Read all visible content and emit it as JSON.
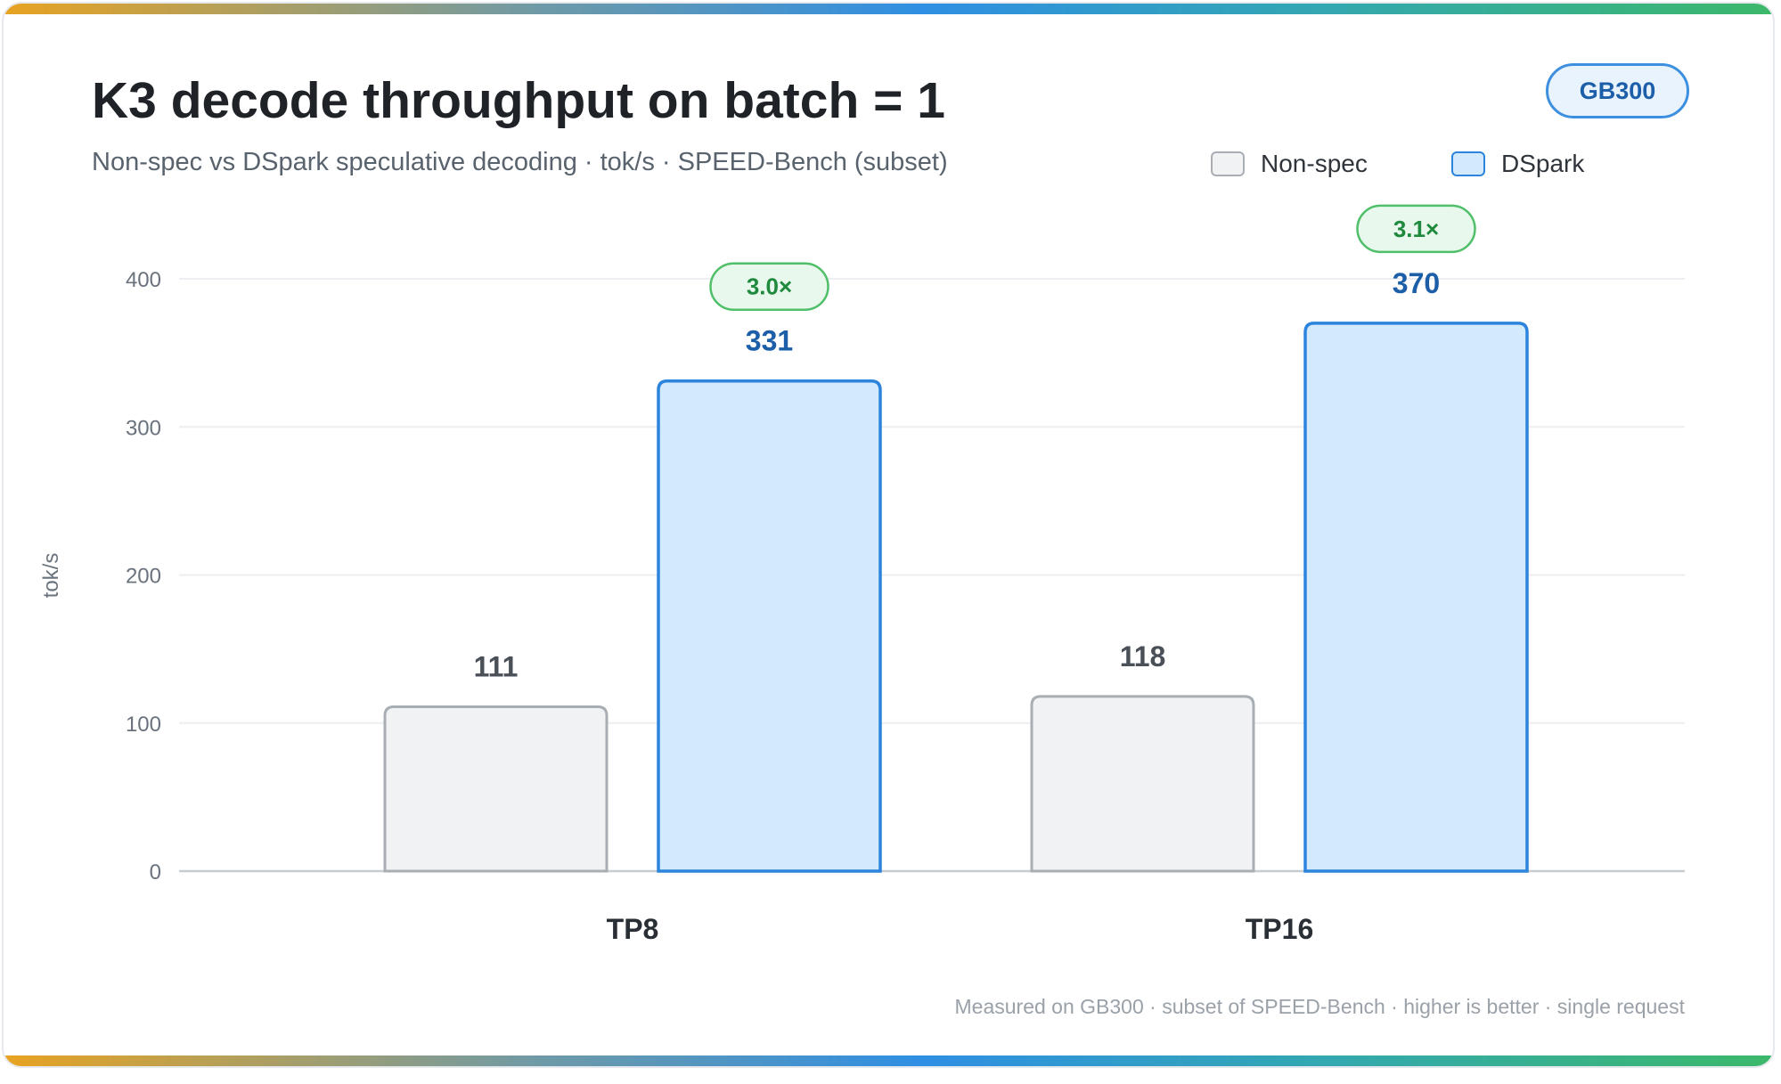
{
  "header": {
    "title": "K3 decode throughput on batch = 1",
    "subtitle": "Non-spec vs DSpark speculative decoding · tok/s · SPEED-Bench (subset)",
    "badge": "GB300"
  },
  "legend": {
    "items": [
      {
        "label": "Non-spec",
        "color": "#f1f2f4",
        "border": "#a9aeb5"
      },
      {
        "label": "DSpark",
        "color": "#d2eafc",
        "border": "#2c84dc"
      }
    ]
  },
  "footer": {
    "note": "Measured on GB300 · subset of SPEED-Bench · higher is better · single request"
  },
  "chart_data": {
    "type": "bar",
    "title": "K3 decode throughput on batch = 1",
    "subtitle": "Non-spec vs DSpark speculative decoding · tok/s · SPEED-Bench (subset)",
    "xlabel": "",
    "ylabel": "tok/s",
    "categories": [
      "TP8",
      "TP16"
    ],
    "series": [
      {
        "name": "Non-spec",
        "values": [
          111,
          118
        ],
        "fill": "#f1f2f4",
        "stroke": "#a9aeb5",
        "label_color": "#4a5058"
      },
      {
        "name": "DSpark",
        "values": [
          331,
          370
        ],
        "fill": "#d2eafc",
        "stroke": "#2c84dc",
        "label_color": "#1c5fa8"
      }
    ],
    "speedups": [
      "3.0×",
      "3.1×"
    ],
    "ylim": [
      0,
      400
    ],
    "yticks": [
      0,
      100,
      200,
      300,
      400
    ],
    "grid": true,
    "legend_position": "top-right"
  }
}
